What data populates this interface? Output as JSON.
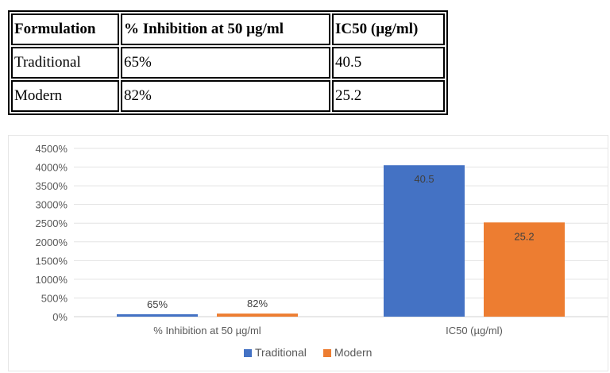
{
  "table": {
    "headers": [
      "Formulation",
      "% Inhibition at 50 µg/ml",
      "IC50 (µg/ml)"
    ],
    "rows": [
      [
        "Traditional",
        "65%",
        "40.5"
      ],
      [
        "Modern",
        "82%",
        "25.2"
      ]
    ]
  },
  "chart_data": {
    "type": "bar",
    "title": "",
    "xlabel": "",
    "ylabel": "",
    "categories": [
      "% Inhibition at 50 µg/ml",
      "IC50 (µg/ml)"
    ],
    "series": [
      {
        "name": "Traditional",
        "color": "#4472C4",
        "values": [
          65,
          4050
        ],
        "labels": [
          "65%",
          "40.5"
        ]
      },
      {
        "name": "Modern",
        "color": "#ED7D31",
        "values": [
          82,
          2520
        ],
        "labels": [
          "82%",
          "25.2"
        ]
      }
    ],
    "ylim": [
      0,
      4500
    ],
    "yticks": [
      0,
      500,
      1000,
      1500,
      2000,
      2500,
      3000,
      3500,
      4000,
      4500
    ],
    "ytick_labels": [
      "0%",
      "500%",
      "1000%",
      "1500%",
      "2000%",
      "2500%",
      "3000%",
      "3500%",
      "4000%",
      "4500%"
    ],
    "grid": true,
    "legend_position": "bottom"
  }
}
